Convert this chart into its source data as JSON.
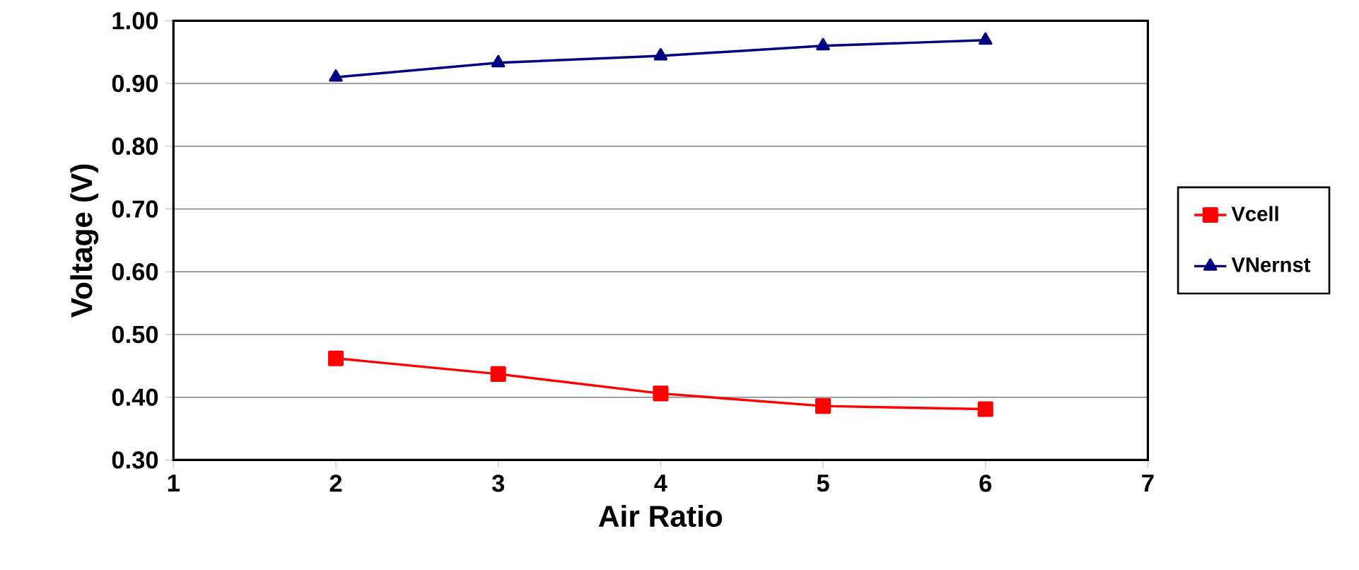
{
  "chart_data": {
    "type": "line",
    "xlabel": "Air Ratio",
    "ylabel": "Voltage (V)",
    "x": [
      2,
      3,
      4,
      5,
      6
    ],
    "series": [
      {
        "name": "Vcell",
        "color": "#ff0000",
        "marker": "square",
        "values": [
          0.462,
          0.437,
          0.406,
          0.386,
          0.381
        ]
      },
      {
        "name": "VNernst",
        "color": "#000080",
        "marker": "triangle",
        "values": [
          0.91,
          0.933,
          0.944,
          0.96,
          0.969
        ]
      }
    ],
    "xlim": [
      1,
      7
    ],
    "xticks": [
      1,
      2,
      3,
      4,
      5,
      6,
      7
    ],
    "ylim": [
      0.3,
      1.0
    ],
    "yticks": [
      {
        "value": 0.3,
        "label": "0.30"
      },
      {
        "value": 0.4,
        "label": "0.40"
      },
      {
        "value": 0.5,
        "label": "0.50"
      },
      {
        "value": 0.6,
        "label": "0.60"
      },
      {
        "value": 0.7,
        "label": "0.70"
      },
      {
        "value": 0.8,
        "label": "0.80"
      },
      {
        "value": 0.9,
        "label": "0.90"
      },
      {
        "value": 1.0,
        "label": "1.00"
      }
    ],
    "grid": "y",
    "legend": "right",
    "line_style": "solid"
  }
}
